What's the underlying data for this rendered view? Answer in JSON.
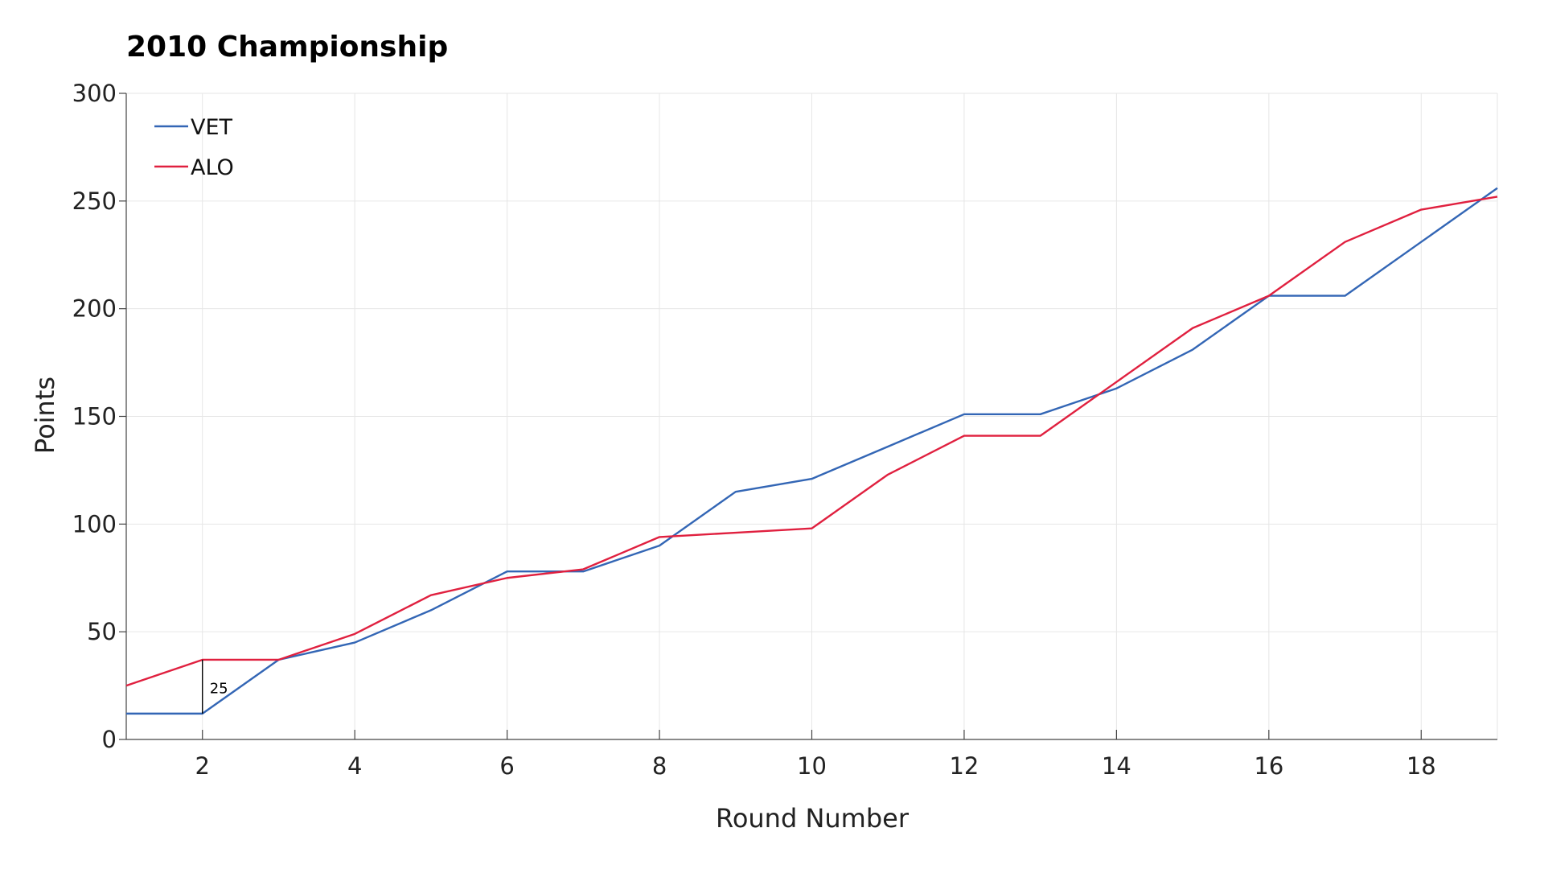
{
  "chart_data": {
    "type": "line",
    "title": "2010 Championship",
    "xlabel": "Round Number",
    "ylabel": "Points",
    "xlim": [
      1,
      19
    ],
    "ylim": [
      0,
      300
    ],
    "xticks": [
      2,
      4,
      6,
      8,
      10,
      12,
      14,
      16,
      18
    ],
    "yticks": [
      0,
      50,
      100,
      150,
      200,
      250,
      300
    ],
    "grid": true,
    "legend_position": "top-left",
    "x": [
      1,
      2,
      3,
      4,
      5,
      6,
      7,
      8,
      9,
      10,
      11,
      12,
      13,
      14,
      15,
      16,
      17,
      18,
      19
    ],
    "series": [
      {
        "name": "VET",
        "color": "#3366b5",
        "values": [
          12,
          12,
          37,
          45,
          60,
          78,
          78,
          90,
          115,
          121,
          136,
          151,
          151,
          163,
          181,
          206,
          206,
          231,
          256
        ]
      },
      {
        "name": "ALO",
        "color": "#e0203f",
        "values": [
          25,
          37,
          37,
          49,
          67,
          75,
          79,
          94,
          96,
          98,
          123,
          141,
          141,
          166,
          191,
          206,
          231,
          246,
          252
        ]
      }
    ],
    "annotations": [
      {
        "text": "25",
        "x": 2,
        "y_from": 12,
        "y_to": 37
      }
    ]
  }
}
